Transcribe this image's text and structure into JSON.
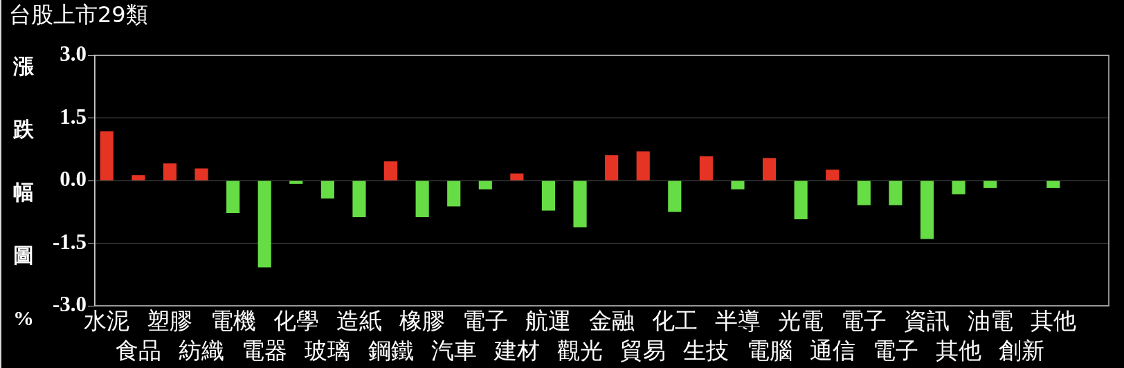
{
  "chart_data": {
    "type": "bar",
    "title": "台股上市29類",
    "ylabel": "漲跌幅圖%",
    "categories": [
      "水泥",
      "食品",
      "塑膠",
      "紡織",
      "電機",
      "電器",
      "化學",
      "玻璃",
      "造紙",
      "鋼鐵",
      "橡膠",
      "汽車",
      "電子",
      "建材",
      "航運",
      "觀光",
      "金融",
      "貿易",
      "化工",
      "生技",
      "半導",
      "電腦",
      "光電",
      "通信",
      "電子",
      "電子",
      "資訊",
      "其他",
      "油電",
      "創新",
      "其他"
    ],
    "values": [
      1.18,
      0.13,
      0.41,
      0.29,
      -0.78,
      -2.08,
      -0.08,
      -0.43,
      -0.88,
      0.46,
      -0.88,
      -0.62,
      -0.21,
      0.17,
      -0.72,
      -1.12,
      0.61,
      0.7,
      -0.75,
      0.58,
      -0.21,
      0.54,
      -0.93,
      0.26,
      -0.59,
      -0.59,
      -1.4,
      -0.33,
      -0.18,
      null,
      -0.18
    ],
    "colors": [
      "#e53424",
      "#e53424",
      "#e53424",
      "#e53424",
      "#66dd44",
      "#66dd44",
      "#66dd44",
      "#66dd44",
      "#66dd44",
      "#e53424",
      "#66dd44",
      "#66dd44",
      "#66dd44",
      "#e53424",
      "#66dd44",
      "#66dd44",
      "#e53424",
      "#e53424",
      "#66dd44",
      "#e53424",
      "#66dd44",
      "#e53424",
      "#66dd44",
      "#e53424",
      "#66dd44",
      "#66dd44",
      "#66dd44",
      "#66dd44",
      "#66dd44",
      "#66dd44",
      "#66dd44"
    ],
    "ylim": [
      -3,
      3
    ],
    "yticks": [
      {
        "value": -3,
        "label": "-3.0"
      },
      {
        "value": -1.5,
        "label": "-1.5"
      },
      {
        "value": 0,
        "label": "0.0"
      },
      {
        "value": 1.5,
        "label": "1.5"
      },
      {
        "value": 3,
        "label": "3.0"
      }
    ],
    "grid": "y"
  }
}
